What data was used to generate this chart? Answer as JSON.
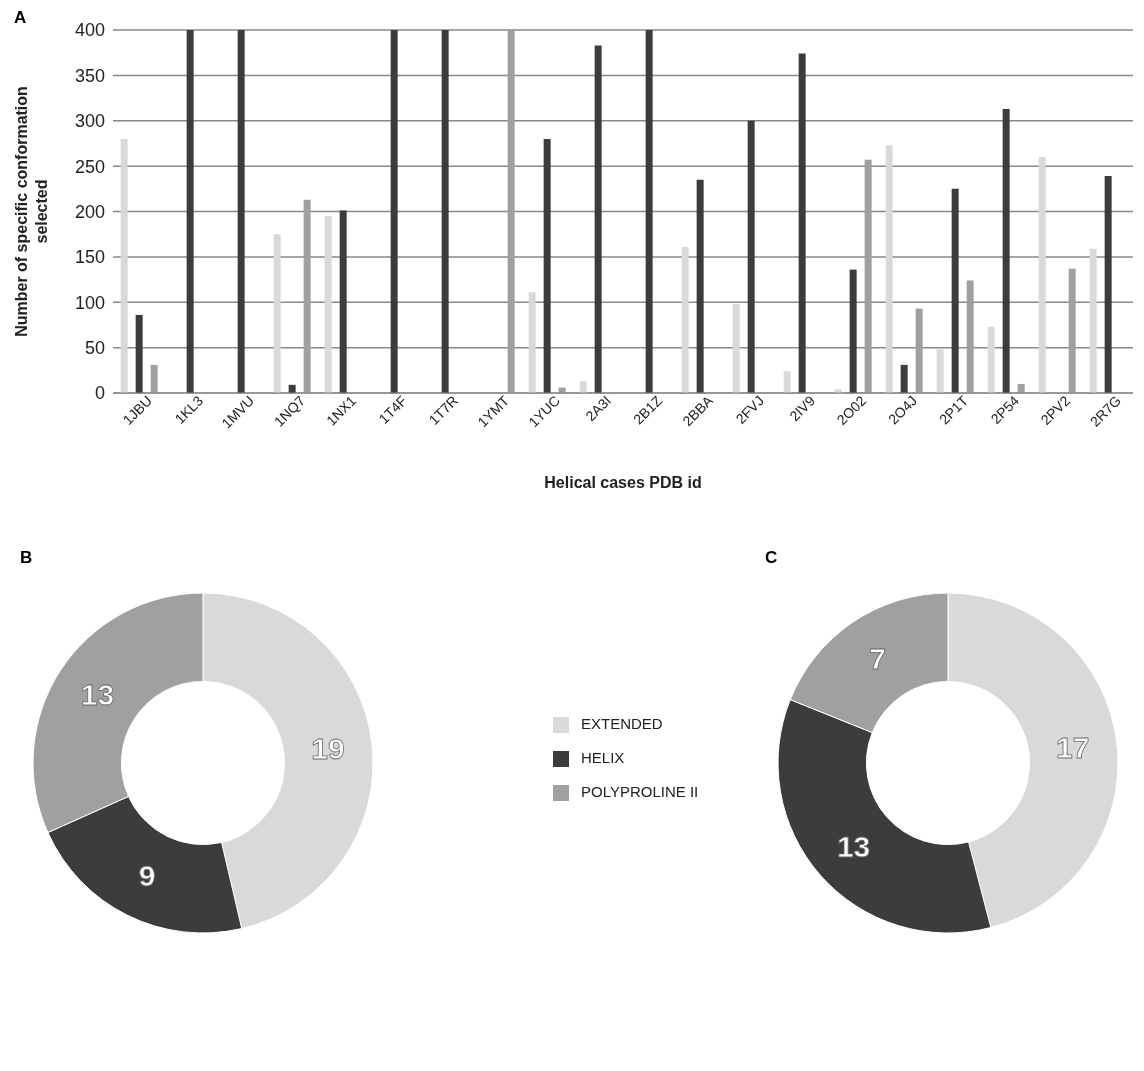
{
  "chart_data": [
    {
      "type": "bar",
      "title": "A",
      "xlabel": "Helical cases PDB id",
      "ylabel": "Number of specific conformation selected",
      "categories": [
        "1JBU",
        "1KL3",
        "1MVU",
        "1NQ7",
        "1NX1",
        "1T4F",
        "1T7R",
        "1YMT",
        "1YUC",
        "2A3I",
        "2B1Z",
        "2BBA",
        "2FVJ",
        "2IV9",
        "2O02",
        "2O4J",
        "2P1T",
        "2P54",
        "2PV2",
        "2R7G"
      ],
      "series": [
        {
          "color": "#d9d9d9",
          "values": [
            280,
            0,
            0,
            175,
            195,
            0,
            0,
            0,
            111,
            13,
            0,
            161,
            98,
            24,
            4,
            273,
            48,
            73,
            260,
            159
          ]
        },
        {
          "color": "#3c3c3c",
          "values": [
            86,
            400,
            400,
            9,
            201,
            400,
            400,
            0,
            280,
            383,
            400,
            235,
            300,
            374,
            136,
            31,
            225,
            313,
            0,
            239
          ]
        },
        {
          "color": "#a0a0a0",
          "values": [
            31,
            0,
            0,
            213,
            1,
            0,
            0,
            400,
            6,
            null,
            0,
            0,
            0,
            0,
            257,
            93,
            124,
            10,
            137,
            0
          ]
        }
      ],
      "ylim": [
        0,
        400
      ],
      "yticks": [
        0,
        50,
        100,
        150,
        200,
        250,
        300,
        350,
        400
      ],
      "grid": "y",
      "legend": false
    },
    {
      "type": "donut",
      "title": "B",
      "categories": [
        "EXTENDED",
        "HELIX",
        "POLYPROLINE II"
      ],
      "values": [
        19,
        9,
        13
      ],
      "colors": [
        "#d9d9d9",
        "#3c3c3c",
        "#a0a0a0"
      ],
      "data_labels": true,
      "legend": "right"
    },
    {
      "type": "donut",
      "title": "C",
      "categories": [
        null,
        null,
        null
      ],
      "values": [
        17,
        13,
        7
      ],
      "colors": [
        "#d9d9d9",
        "#3c3c3c",
        "#a0a0a0"
      ],
      "data_labels": true,
      "legend": false
    }
  ]
}
